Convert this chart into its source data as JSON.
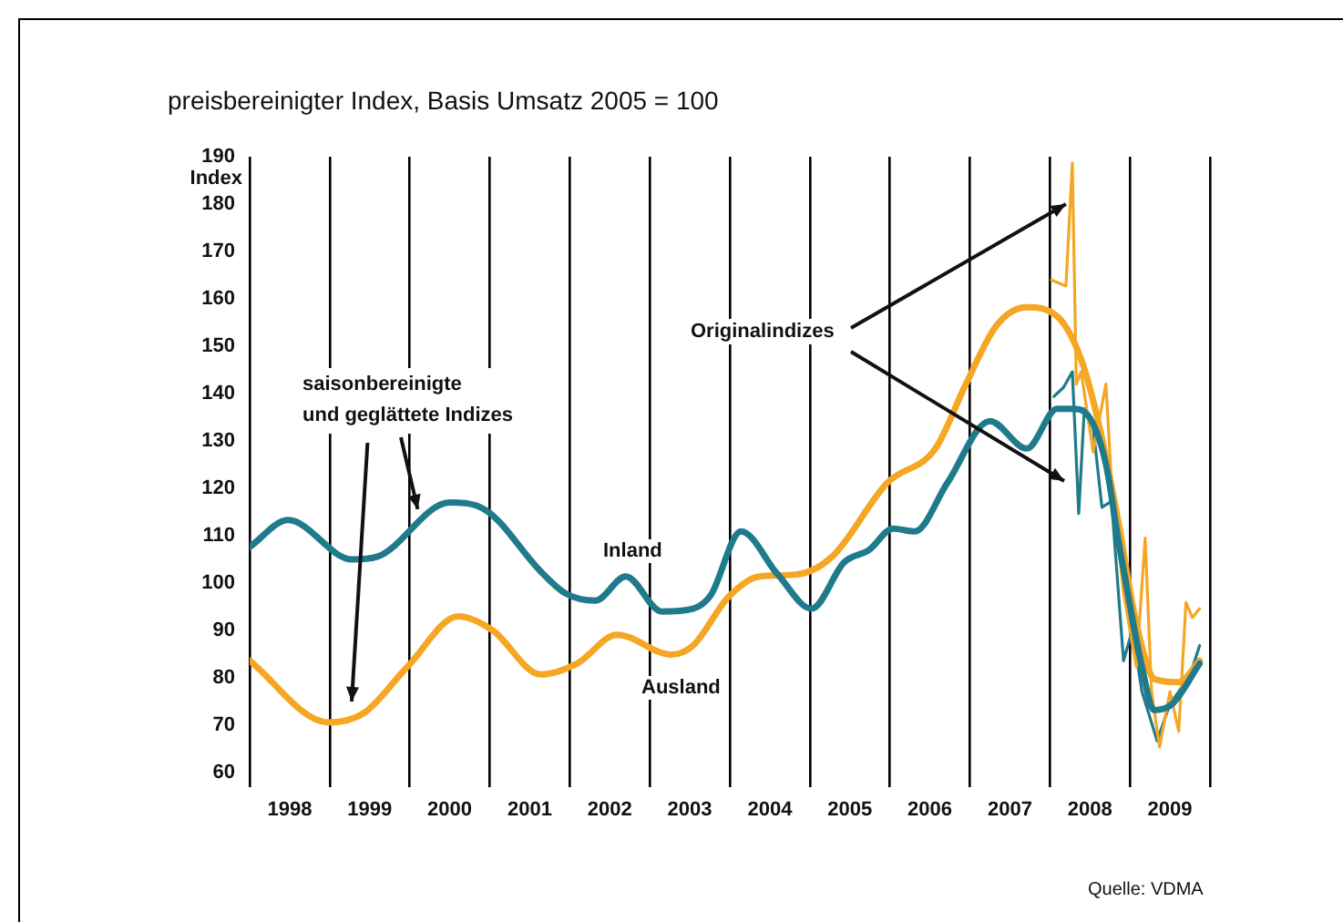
{
  "chart_data": {
    "type": "line",
    "title": "preisbereinigter Index, Basis Umsatz 2005 = 100",
    "ylabel": "Index",
    "annotations": [
      {
        "text": "saisonbereinigte\nund geglättete Indizes",
        "x": 2000.1,
        "y": 115.6
      },
      {
        "text": "Originalindizes",
        "x": 2008.2,
        "y": 180
      },
      "Quelle: VDMA"
    ],
    "xlim": [
      1998,
      2010
    ],
    "xticks": [
      {
        "value": 1998,
        "label": null
      },
      {
        "value": 1998.5,
        "label": "1998"
      },
      {
        "value": 1999,
        "label": null
      },
      {
        "value": 1999.5,
        "label": "1999"
      },
      {
        "value": 2000,
        "label": null
      },
      {
        "value": 2000.5,
        "label": "2000"
      },
      {
        "value": 2001,
        "label": null
      },
      {
        "value": 2001.5,
        "label": "2001"
      },
      {
        "value": 2002,
        "label": null
      },
      {
        "value": 2002.5,
        "label": "2002"
      },
      {
        "value": 2003,
        "label": null
      },
      {
        "value": 2003.5,
        "label": "2003"
      },
      {
        "value": 2004,
        "label": null
      },
      {
        "value": 2004.5,
        "label": "2004"
      },
      {
        "value": 2005,
        "label": null
      },
      {
        "value": 2005.5,
        "label": "2005"
      },
      {
        "value": 2006,
        "label": null
      },
      {
        "value": 2006.5,
        "label": "2006"
      },
      {
        "value": 2007,
        "label": null
      },
      {
        "value": 2007.5,
        "label": "2007"
      },
      {
        "value": 2008,
        "label": null
      },
      {
        "value": 2008.5,
        "label": "2008"
      },
      {
        "value": 2009,
        "label": null
      },
      {
        "value": 2009.5,
        "label": "2009"
      },
      {
        "value": 2010,
        "label": null
      }
    ],
    "ylim": [
      60,
      190
    ],
    "yticks": [
      60,
      70,
      80,
      90,
      100,
      110,
      120,
      130,
      140,
      150,
      160,
      170,
      180,
      190
    ],
    "grid": "x",
    "marker": "none",
    "line_style": "solid",
    "series": [
      {
        "color": "#f5a623",
        "x": [
          2008.02,
          2008.2,
          2008.28,
          2008.33,
          2008.39,
          2008.54,
          2008.7,
          2008.77,
          2008.92,
          2009.08,
          2009.19,
          2009.27,
          2009.37,
          2009.5,
          2009.61,
          2009.7,
          2009.78,
          2009.87
        ],
        "values": [
          164,
          162.7,
          188.7,
          142,
          144.6,
          127.7,
          142,
          121.2,
          97.9,
          82.3,
          109.5,
          77.1,
          65.4,
          77.1,
          68.7,
          95.9,
          92.7,
          94.6
        ]
      },
      {
        "color": "#1f7a8c",
        "x": [
          2008.05,
          2008.17,
          2008.28,
          2008.36,
          2008.43,
          2008.54,
          2008.65,
          2008.77,
          2008.92,
          2009.03,
          2009.15,
          2009.34,
          2009.5,
          2009.61,
          2009.76,
          2009.87
        ],
        "values": [
          139.4,
          141.3,
          144.6,
          114.7,
          136.8,
          132.9,
          116,
          117.3,
          83.6,
          90.1,
          77.1,
          66.7,
          74.5,
          77.1,
          81,
          86.8
        ]
      },
      {
        "name": "Inland",
        "color": "#1f7a8c",
        "x": [
          1998,
          1998.48,
          1999.28,
          1999.6,
          2000.5,
          2000.95,
          2001.64,
          2001.94,
          2002.32,
          2002.7,
          2003.15,
          2003.54,
          2003.76,
          2004.14,
          2004.6,
          2005.02,
          2005.43,
          2005.74,
          2006.04,
          2006.31,
          2006.72,
          2007.25,
          2007.71,
          2008.09,
          2008.28,
          2008.47,
          2008.7,
          2008.85,
          2009,
          2009.15,
          2009.3,
          2009.53,
          2009.87
        ],
        "values": [
          107.6,
          113.3,
          105,
          105.6,
          117,
          115.4,
          102.4,
          97.9,
          96.3,
          101.4,
          94,
          94.6,
          97.4,
          110.9,
          101.8,
          94.6,
          104.4,
          107,
          111.5,
          110.9,
          121.2,
          134.2,
          128.4,
          136.8,
          136.8,
          135.5,
          125.1,
          109.5,
          95.3,
          82.3,
          73.2,
          74.5,
          83
        ]
      },
      {
        "name": "Ausland",
        "color": "#f5a623",
        "x": [
          1998,
          1998.98,
          1999.43,
          1999.97,
          2000.61,
          2001.03,
          2001.64,
          2002.09,
          2002.59,
          2003.27,
          2003.54,
          2003.99,
          2004.37,
          2004.83,
          2005.28,
          2005.97,
          2006.57,
          2006.95,
          2007.33,
          2007.71,
          2008.09,
          2008.39,
          2008.62,
          2008.85,
          2009.08,
          2009.31,
          2009.61,
          2009.87
        ],
        "values": [
          83.6,
          70.6,
          72.6,
          82.3,
          93,
          90.1,
          80.7,
          83,
          89.1,
          84.9,
          86.8,
          97.2,
          101.4,
          101.8,
          105.6,
          121.2,
          128.4,
          142,
          154.3,
          158.2,
          156.3,
          147.2,
          132.9,
          113.4,
          91.4,
          79.7,
          79.1,
          83.6
        ]
      }
    ]
  }
}
